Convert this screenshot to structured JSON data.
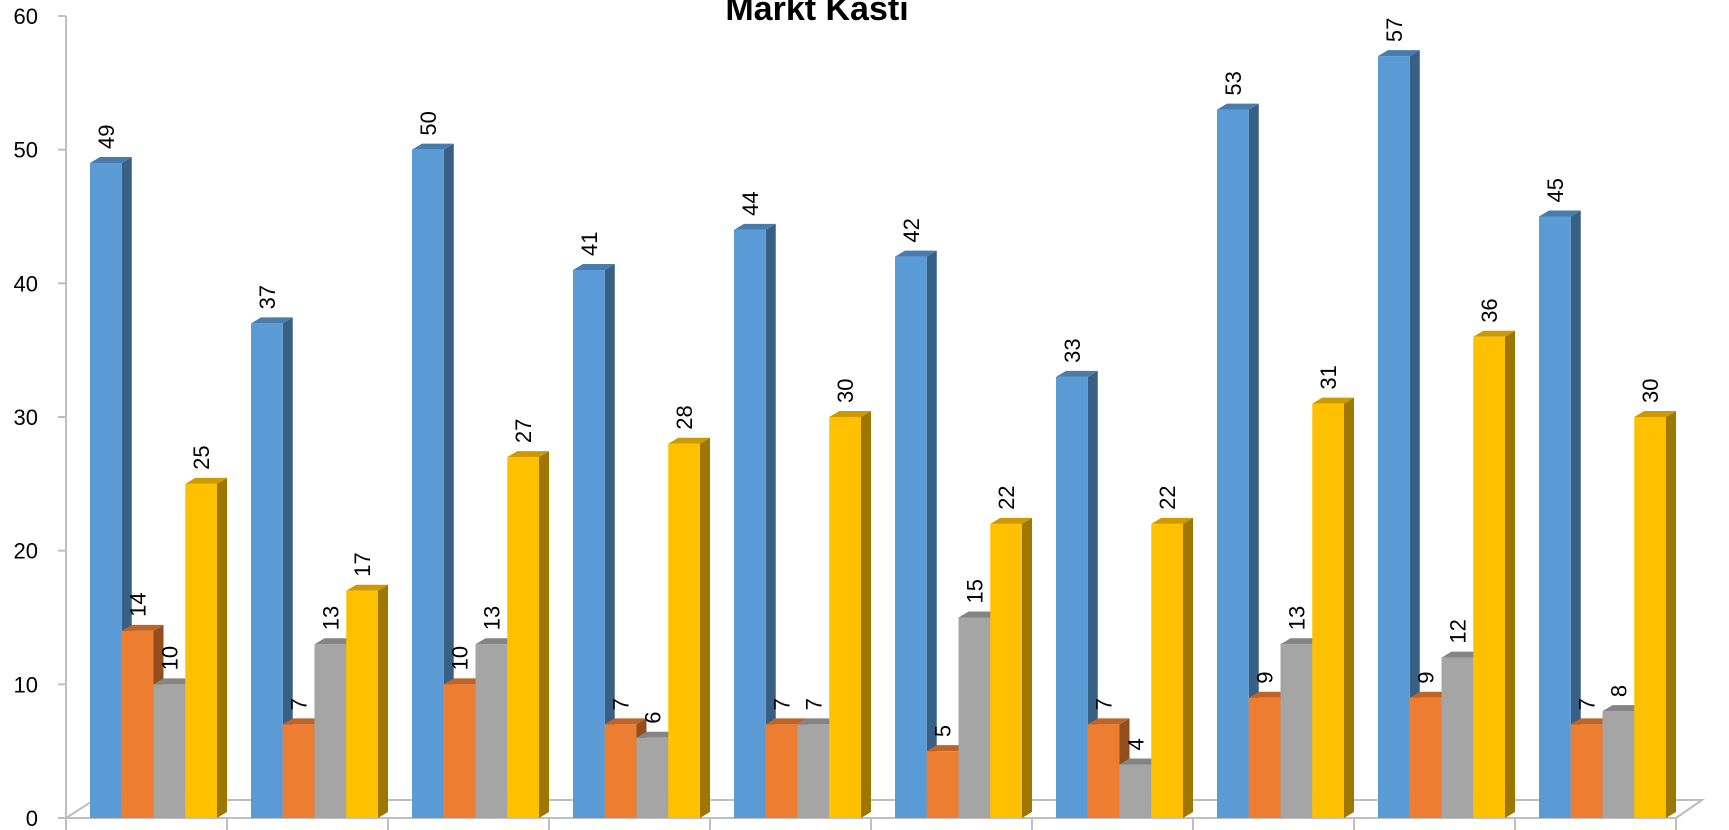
{
  "chart_data": {
    "type": "bar",
    "title": "Markt Kasti",
    "categories": [
      "",
      "",
      "",
      "",
      "",
      "",
      "",
      "",
      "",
      ""
    ],
    "series": [
      {
        "values": [
          49,
          37,
          50,
          41,
          44,
          42,
          33,
          53,
          57,
          45
        ],
        "color": "#5B9BD5"
      },
      {
        "values": [
          14,
          7,
          10,
          7,
          7,
          5,
          7,
          9,
          9,
          7
        ],
        "color": "#ED7D31"
      },
      {
        "values": [
          10,
          13,
          13,
          6,
          7,
          15,
          4,
          13,
          12,
          8
        ],
        "color": "#A5A5A5"
      },
      {
        "values": [
          25,
          17,
          27,
          28,
          30,
          22,
          22,
          31,
          36,
          30
        ],
        "color": "#FFC000"
      }
    ],
    "ylim": [
      0,
      60
    ],
    "yticks": [
      0,
      10,
      20,
      30,
      40,
      50,
      60
    ],
    "grid": false,
    "legend": "none",
    "data_labels": true,
    "style": "3d-clustered-column"
  }
}
